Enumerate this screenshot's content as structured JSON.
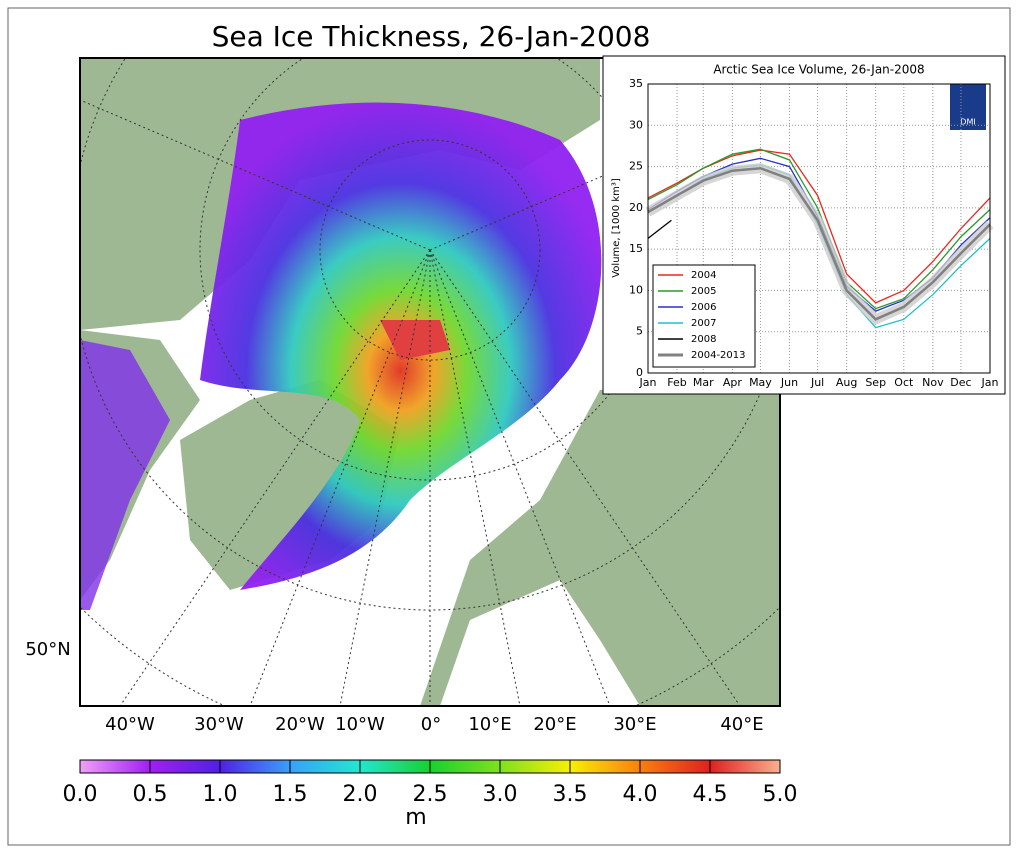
{
  "map": {
    "title": "Sea Ice Thickness, 26-Jan-2008",
    "longitude_labels": [
      "40°W",
      "30°W",
      "20°W",
      "10°W",
      "0°",
      "10°E",
      "20°E",
      "30°E",
      "40°E"
    ],
    "latitude_labels": [
      "50°N"
    ]
  },
  "colorbar": {
    "label": "m",
    "lim": [
      0,
      5
    ],
    "ticks": [
      {
        "value": 0,
        "label": "0.0"
      },
      {
        "value": 0.5,
        "label": "0.5"
      },
      {
        "value": 1,
        "label": "1.0"
      },
      {
        "value": 1.5,
        "label": "1.5"
      },
      {
        "value": 2,
        "label": "2.0"
      },
      {
        "value": 2.5,
        "label": "2.5"
      },
      {
        "value": 3,
        "label": "3.0"
      },
      {
        "value": 3.5,
        "label": "3.5"
      },
      {
        "value": 4,
        "label": "4.0"
      },
      {
        "value": 4.5,
        "label": "4.5"
      },
      {
        "value": 5,
        "label": "5.0"
      }
    ]
  },
  "chart_data": {
    "type": "line",
    "title": "Arctic Sea Ice Volume, 26-Jan-2008",
    "y_label": "Volume, [1000 km³]",
    "logo": "DMI",
    "x": [
      0,
      31,
      59,
      90,
      120,
      151,
      181,
      212,
      243,
      273,
      304,
      334,
      365
    ],
    "xlim": [
      0,
      365
    ],
    "xticks": [
      {
        "value": 0,
        "label": "Jan"
      },
      {
        "value": 31,
        "label": "Feb"
      },
      {
        "value": 59,
        "label": "Mar"
      },
      {
        "value": 90,
        "label": "Apr"
      },
      {
        "value": 120,
        "label": "May"
      },
      {
        "value": 151,
        "label": "Jun"
      },
      {
        "value": 181,
        "label": "Jul"
      },
      {
        "value": 212,
        "label": "Aug"
      },
      {
        "value": 243,
        "label": "Sep"
      },
      {
        "value": 273,
        "label": "Oct"
      },
      {
        "value": 304,
        "label": "Nov"
      },
      {
        "value": 334,
        "label": "Dec"
      },
      {
        "value": 365,
        "label": "Jan"
      }
    ],
    "ylim": [
      0,
      35
    ],
    "yticks": [
      0,
      5,
      10,
      15,
      20,
      25,
      30,
      35
    ],
    "grid": true,
    "legend": "lower left",
    "series": [
      {
        "name": "2004",
        "color": "#e8281e",
        "values": [
          21.2,
          23,
          24.8,
          26.3,
          27,
          26.5,
          21.5,
          12,
          8.5,
          10,
          13.5,
          17.5,
          21.2
        ]
      },
      {
        "name": "2005",
        "color": "#2a9a2a",
        "values": [
          21,
          22.8,
          24.8,
          26.5,
          27.1,
          25.8,
          20,
          11,
          7.8,
          9,
          12.5,
          16.5,
          19.8
        ]
      },
      {
        "name": "2006",
        "color": "#2830c8",
        "values": [
          19.8,
          22,
          23.8,
          25.3,
          26,
          25,
          19,
          10.5,
          7.5,
          8.8,
          11.5,
          15.5,
          18.8
        ]
      },
      {
        "name": "2007",
        "color": "#1fc0c8",
        "values": [
          19.5,
          21.5,
          23.5,
          24.8,
          25.2,
          24,
          18,
          9.5,
          5.5,
          6.5,
          9.5,
          13,
          16.3
        ]
      },
      {
        "name": "2008",
        "color": "#000000",
        "x": [
          0,
          25
        ],
        "values": [
          16.3,
          18.5
        ]
      },
      {
        "name": "2004-2013",
        "color": "#808080",
        "values": [
          19.5,
          21.5,
          23.3,
          24.5,
          24.8,
          23.5,
          18.5,
          10,
          6.5,
          8,
          11,
          14.5,
          18
        ]
      }
    ]
  }
}
